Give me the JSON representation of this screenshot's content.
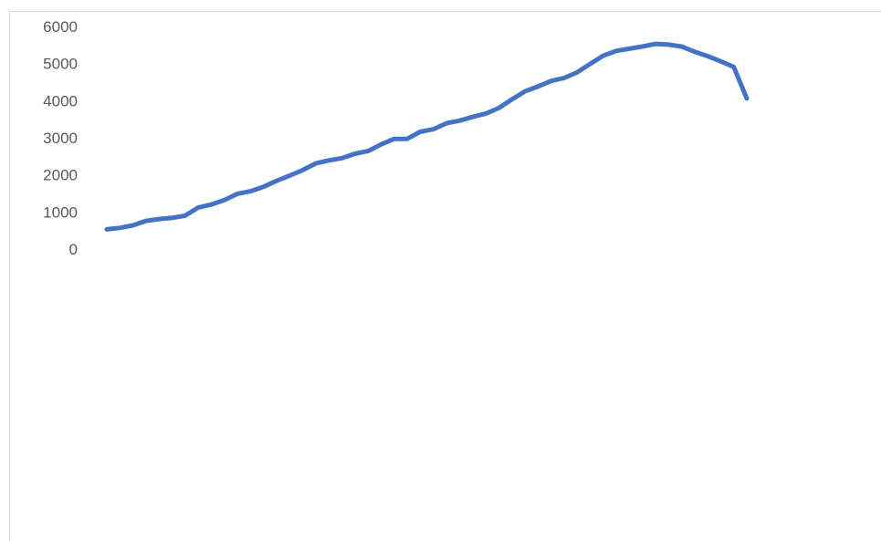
{
  "chart_data": {
    "type": "line",
    "title": "",
    "xlabel": "",
    "ylabel": "",
    "ylim": [
      0,
      6000
    ],
    "yticks": [
      0,
      1000,
      2000,
      3000,
      4000,
      5000,
      6000
    ],
    "grid": false,
    "legend": "none",
    "series": [
      {
        "color": "#4472c4",
        "values": [
          530,
          570,
          640,
          760,
          810,
          840,
          900,
          1120,
          1200,
          1320,
          1490,
          1560,
          1680,
          1840,
          1980,
          2130,
          2310,
          2390,
          2450,
          2570,
          2640,
          2820,
          2970,
          2970,
          3160,
          3230,
          3390,
          3460,
          3560,
          3650,
          3800,
          4030,
          4250,
          4380,
          4530,
          4610,
          4760,
          4990,
          5210,
          5340,
          5400,
          5460,
          5530,
          5510,
          5460,
          5320,
          5200,
          5060,
          4910,
          4060
        ]
      }
    ]
  }
}
